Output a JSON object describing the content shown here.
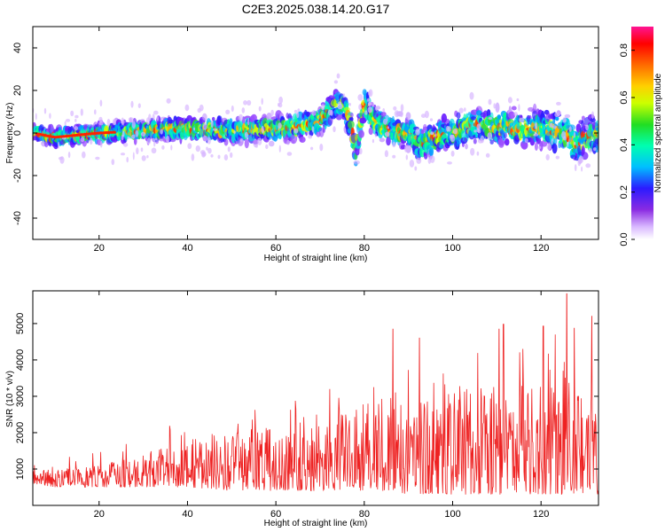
{
  "title": "C2E3.2025.038.14.20.G17",
  "chart_data": [
    {
      "type": "heatmap",
      "xlabel": "Height of straight line (km)",
      "ylabel": "Frequency (Hz)",
      "xlim": [
        5,
        133
      ],
      "ylim": [
        -50,
        50
      ],
      "xticks": [
        20,
        40,
        60,
        80,
        100,
        120
      ],
      "xtick_labels": [
        "20",
        "40",
        "60",
        "80",
        "100",
        "120"
      ],
      "yticks": [
        -40,
        -20,
        0,
        20,
        40
      ],
      "ytick_labels": [
        "-40",
        "-20",
        "0",
        "20",
        "40"
      ],
      "colorbar": {
        "label": "Normalized spectral amplitude",
        "range": [
          0.0,
          0.9
        ],
        "ticks": [
          0.0,
          0.2,
          0.4,
          0.6,
          0.8
        ],
        "tick_labels": [
          "0.0",
          "0.2",
          "0.4",
          "0.6",
          "0.8"
        ]
      },
      "center_frequency_trace": {
        "x": [
          5,
          10,
          20,
          30,
          40,
          50,
          60,
          65,
          70,
          73,
          75,
          77,
          78,
          80,
          82,
          85,
          90,
          93,
          95,
          100,
          105,
          110,
          115,
          120,
          125,
          128,
          130,
          133
        ],
        "y": [
          0,
          -2,
          0,
          1,
          2,
          1,
          2,
          3,
          6,
          12,
          14,
          4,
          -10,
          14,
          6,
          2,
          0,
          -6,
          -3,
          0,
          4,
          3,
          2,
          3,
          0,
          -5,
          -2,
          -1
        ]
      },
      "grid": false
    },
    {
      "type": "line",
      "xlabel": "Height of straight line (km)",
      "ylabel": "SNR (10 * v/v)",
      "xlim": [
        5,
        133
      ],
      "ylim": [
        0,
        5900
      ],
      "xticks": [
        20,
        40,
        60,
        80,
        100,
        120
      ],
      "xtick_labels": [
        "20",
        "40",
        "60",
        "80",
        "100",
        "120"
      ],
      "yticks": [
        1000,
        2000,
        3000,
        4000,
        5000
      ],
      "ytick_labels": [
        "1000",
        "2000",
        "3000",
        "4000",
        "5000"
      ],
      "color": "#ee2222",
      "envelope": {
        "x": [
          5,
          10,
          20,
          30,
          40,
          50,
          60,
          70,
          80,
          90,
          100,
          110,
          120,
          125,
          130,
          133
        ],
        "baseline": [
          600,
          500,
          500,
          500,
          500,
          400,
          400,
          400,
          400,
          300,
          300,
          300,
          300,
          300,
          300,
          300
        ],
        "typical_peak": [
          1200,
          1000,
          1100,
          1400,
          1800,
          2000,
          2200,
          2500,
          2900,
          3100,
          3100,
          3300,
          3400,
          3600,
          3200,
          3000
        ]
      },
      "notable_peaks": [
        {
          "x": 86.5,
          "y": 4850
        },
        {
          "x": 92.5,
          "y": 4600
        },
        {
          "x": 110.5,
          "y": 4850
        },
        {
          "x": 111.5,
          "y": 4980
        },
        {
          "x": 120.5,
          "y": 4930
        },
        {
          "x": 125.8,
          "y": 5820
        },
        {
          "x": 127.5,
          "y": 4870
        },
        {
          "x": 131.5,
          "y": 5200
        }
      ],
      "grid": false
    }
  ]
}
